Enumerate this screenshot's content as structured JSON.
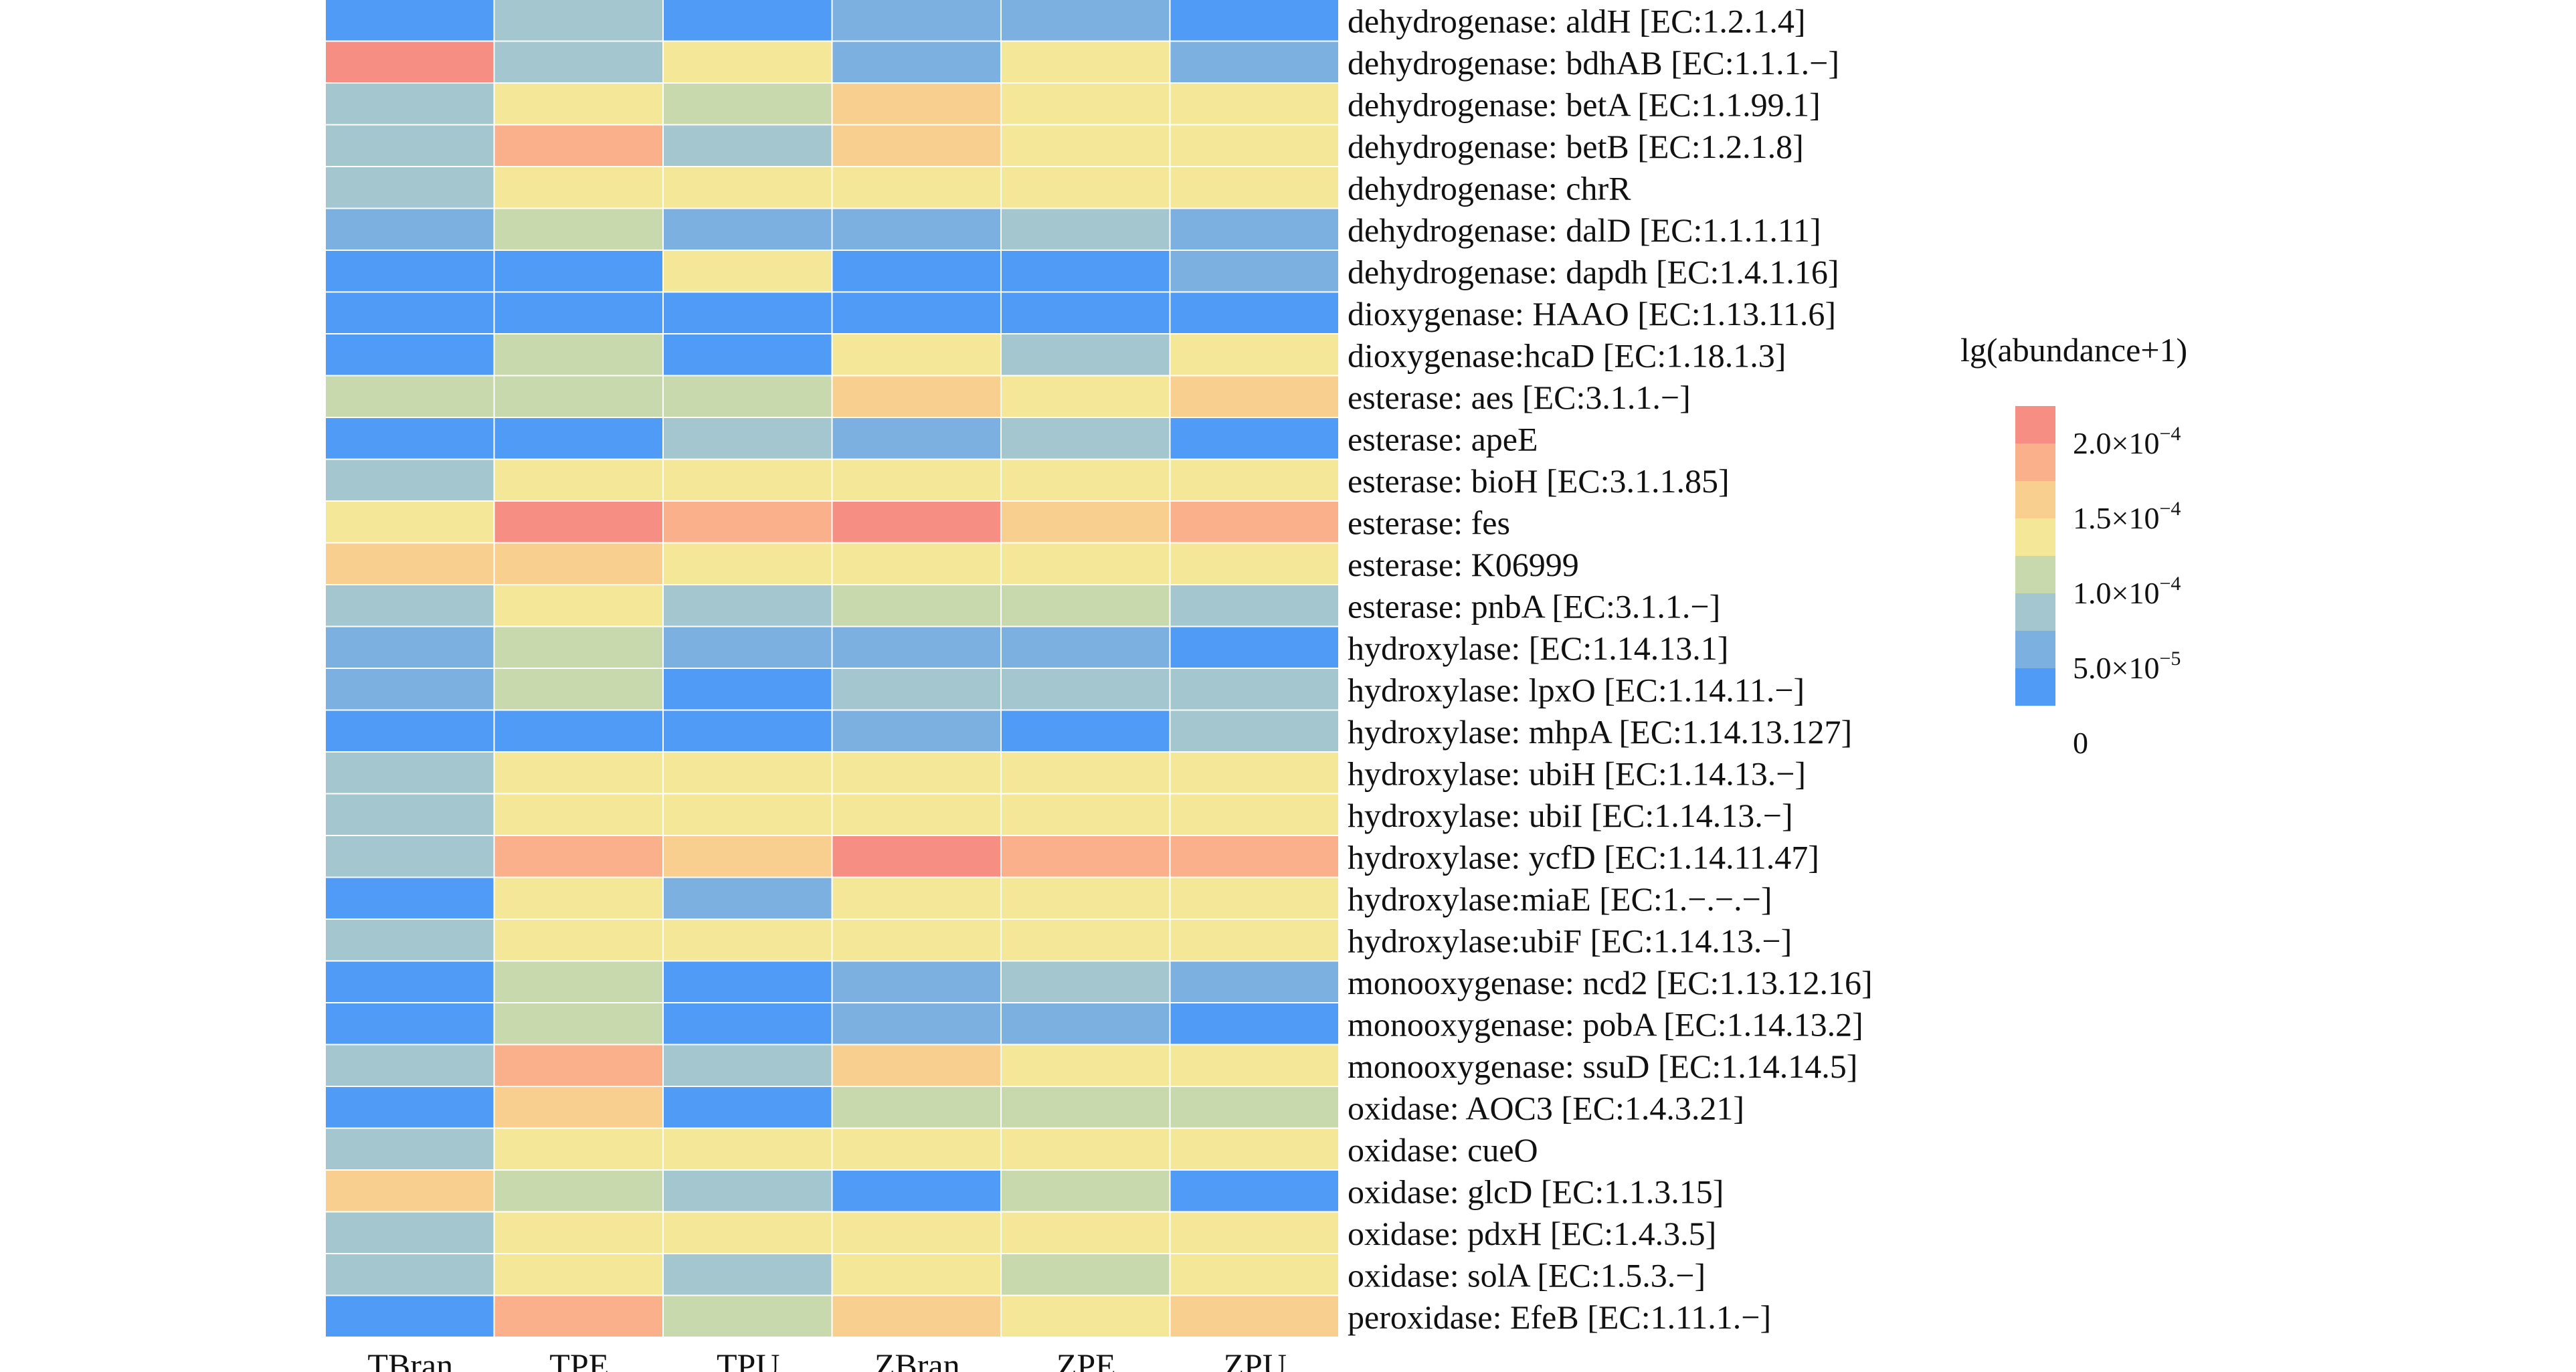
{
  "chart_data": {
    "type": "heatmap",
    "columns": [
      "TBran",
      "TPE",
      "TPU",
      "ZBran",
      "ZPE",
      "ZPU"
    ],
    "rows": [
      "dehydrogenase: aldH [EC:1.2.1.4]",
      "dehydrogenase: bdhAB [EC:1.1.1.−]",
      "dehydrogenase: betA [EC:1.1.99.1]",
      "dehydrogenase: betB [EC:1.2.1.8]",
      "dehydrogenase: chrR",
      "dehydrogenase: dalD [EC:1.1.1.11]",
      "dehydrogenase: dapdh [EC:1.4.1.16]",
      "dioxygenase: HAAO [EC:1.13.11.6]",
      "dioxygenase:hcaD [EC:1.18.1.3]",
      "esterase: aes [EC:3.1.1.−]",
      "esterase: apeE",
      "esterase: bioH [EC:3.1.1.85]",
      "esterase: fes",
      "esterase: K06999",
      "esterase: pnbA [EC:3.1.1.−]",
      "hydroxylase: [EC:1.14.13.1]",
      "hydroxylase: lpxO [EC:1.14.11.−]",
      "hydroxylase: mhpA [EC:1.14.13.127]",
      "hydroxylase: ubiH [EC:1.14.13.−]",
      "hydroxylase: ubiI [EC:1.14.13.−]",
      "hydroxylase: ycfD [EC:1.14.11.47]",
      "hydroxylase:miaE [EC:1.−.−.−]",
      "hydroxylase:ubiF [EC:1.14.13.−]",
      "monooxygenase: ncd2 [EC:1.13.12.16]",
      "monooxygenase: pobA [EC:1.14.13.2]",
      "monooxygenase: ssuD [EC:1.14.14.5]",
      "oxidase: AOC3 [EC:1.4.3.21]",
      "oxidase: cueO",
      "oxidase: glcD [EC:1.1.3.15]",
      "oxidase: pdxH [EC:1.4.3.5]",
      "oxidase: solA [EC:1.5.3.−]",
      "peroxidase: EfeB [EC:1.11.1.−]"
    ],
    "values": [
      [
        0,
        70,
        0,
        40,
        40,
        0
      ],
      [
        210,
        55,
        100,
        40,
        100,
        40
      ],
      [
        55,
        100,
        75,
        150,
        110,
        110
      ],
      [
        55,
        180,
        55,
        150,
        110,
        110
      ],
      [
        55,
        110,
        110,
        110,
        110,
        110
      ],
      [
        40,
        75,
        40,
        40,
        55,
        40
      ],
      [
        0,
        0,
        100,
        0,
        0,
        40
      ],
      [
        0,
        0,
        0,
        0,
        0,
        0
      ],
      [
        0,
        75,
        0,
        100,
        55,
        100
      ],
      [
        75,
        75,
        75,
        150,
        100,
        150
      ],
      [
        0,
        0,
        55,
        40,
        55,
        0
      ],
      [
        55,
        100,
        100,
        110,
        110,
        110
      ],
      [
        100,
        210,
        170,
        210,
        150,
        180
      ],
      [
        150,
        150,
        100,
        110,
        100,
        110
      ],
      [
        55,
        100,
        55,
        75,
        75,
        55
      ],
      [
        40,
        75,
        40,
        40,
        40,
        0
      ],
      [
        40,
        75,
        0,
        55,
        55,
        55
      ],
      [
        0,
        0,
        0,
        40,
        0,
        55
      ],
      [
        55,
        100,
        100,
        110,
        100,
        110
      ],
      [
        55,
        100,
        100,
        110,
        100,
        110
      ],
      [
        55,
        180,
        150,
        210,
        190,
        190
      ],
      [
        0,
        100,
        40,
        110,
        110,
        110
      ],
      [
        55,
        100,
        100,
        110,
        110,
        110
      ],
      [
        0,
        75,
        0,
        40,
        55,
        40
      ],
      [
        0,
        75,
        0,
        40,
        40,
        0
      ],
      [
        55,
        180,
        55,
        150,
        110,
        110
      ],
      [
        0,
        150,
        0,
        75,
        75,
        75
      ],
      [
        55,
        100,
        100,
        110,
        100,
        110
      ],
      [
        150,
        75,
        55,
        0,
        75,
        0
      ],
      [
        55,
        100,
        100,
        110,
        100,
        110
      ],
      [
        55,
        100,
        55,
        100,
        75,
        100
      ],
      [
        0,
        170,
        75,
        150,
        110,
        150
      ]
    ],
    "value_unit": "x1e-6",
    "colorscale": [
      {
        "value": 0,
        "color": "#4f9bf5"
      },
      {
        "value": 33,
        "color": "#7bb0e0"
      },
      {
        "value": 58,
        "color": "#a3c6cf"
      },
      {
        "value": 83,
        "color": "#c9d9ae"
      },
      {
        "value": 108,
        "color": "#f4e797"
      },
      {
        "value": 150,
        "color": "#f8cf8f"
      },
      {
        "value": 183,
        "color": "#fab08a"
      },
      {
        "value": 217,
        "color": "#f78e84"
      }
    ],
    "legend": {
      "title": "lg(abundance+1)",
      "ticks": [
        {
          "mantissa": "2.0",
          "exp": "−4"
        },
        {
          "mantissa": "1.5",
          "exp": "−4"
        },
        {
          "mantissa": "1.0",
          "exp": "−4"
        },
        {
          "mantissa": "5.0",
          "exp": "−5"
        },
        {
          "mantissa": "0",
          "exp": ""
        }
      ],
      "swatches": [
        "#f78e84",
        "#fab08a",
        "#f8cf8f",
        "#f4e797",
        "#c9d9ae",
        "#a3c6cf",
        "#7bb0e0",
        "#4f9bf5"
      ]
    },
    "grid": true,
    "legend_position": "right"
  }
}
